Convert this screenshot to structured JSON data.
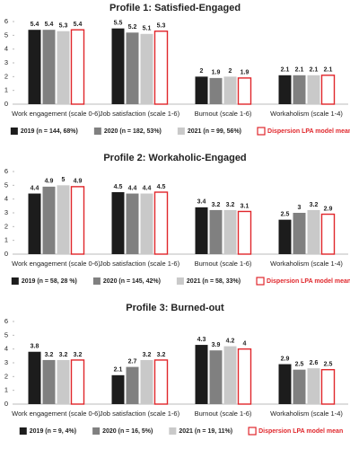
{
  "chart_data": [
    {
      "type": "bar",
      "title": "Profile 1: Satisfied-Engaged",
      "categories": [
        "Work engagement (scale 0-6)",
        "Job satisfaction (scale 1-6)",
        "Burnout (scale 1-6)",
        "Workaholism (scale 1-4)"
      ],
      "series": [
        {
          "name": "2019 (n = 144, 68%)",
          "color": "#1c1c1c",
          "values": [
            5.4,
            5.5,
            2,
            2.1
          ]
        },
        {
          "name": "2020 (n = 182, 53%)",
          "color": "#808080",
          "values": [
            5.4,
            5.2,
            1.9,
            2.1
          ]
        },
        {
          "name": "2021 (n = 99, 56%)",
          "color": "#c9c9c9",
          "values": [
            5.3,
            5.1,
            2,
            2.1
          ]
        },
        {
          "name": "Dispersion LPA model mean",
          "color": "#e0262b",
          "outline": true,
          "values": [
            5.4,
            5.3,
            1.9,
            2.1
          ]
        }
      ],
      "ylim": [
        0,
        6
      ],
      "yticks": [
        0,
        1,
        2,
        3,
        4,
        5,
        6
      ]
    },
    {
      "type": "bar",
      "title": "Profile 2: Workaholic-Engaged",
      "categories": [
        "Work engagement (scale 0-6)",
        "Job satisfaction (scale 1-6)",
        "Burnout (scale 1-6)",
        "Workaholism (scale 1-4)"
      ],
      "series": [
        {
          "name": "2019 (n = 58, 28 %)",
          "color": "#1c1c1c",
          "values": [
            4.4,
            4.5,
            3.4,
            2.5
          ]
        },
        {
          "name": "2020 (n = 145, 42%)",
          "color": "#808080",
          "values": [
            4.9,
            4.4,
            3.2,
            3
          ]
        },
        {
          "name": "2021 (n = 58, 33%)",
          "color": "#c9c9c9",
          "values": [
            5,
            4.4,
            3.2,
            3.2
          ]
        },
        {
          "name": "Dispersion LPA model mean",
          "color": "#e0262b",
          "outline": true,
          "values": [
            4.9,
            4.5,
            3.1,
            2.9
          ]
        }
      ],
      "ylim": [
        0,
        6
      ],
      "yticks": [
        0,
        1,
        2,
        3,
        4,
        5,
        6
      ]
    },
    {
      "type": "bar",
      "title": "Profile 3: Burned-out",
      "categories": [
        "Work engagement (scale 0-6)",
        "Job satisfaction (scale 1-6)",
        "Burnout (scale 1-6)",
        "Workaholism (scale 1-4)"
      ],
      "series": [
        {
          "name": "2019 (n = 9, 4%)",
          "color": "#1c1c1c",
          "values": [
            3.8,
            2.1,
            4.3,
            2.9
          ]
        },
        {
          "name": "2020 (n = 16, 5%)",
          "color": "#808080",
          "values": [
            3.2,
            2.7,
            3.9,
            2.5
          ]
        },
        {
          "name": "2021 (n = 19, 11%)",
          "color": "#c9c9c9",
          "values": [
            3.2,
            3.2,
            4.2,
            2.6
          ]
        },
        {
          "name": "Dispersion LPA model mean",
          "color": "#e0262b",
          "outline": true,
          "values": [
            3.2,
            3.2,
            4,
            2.5
          ]
        }
      ],
      "ylim": [
        0,
        6
      ],
      "yticks": [
        0,
        1,
        2,
        3,
        4,
        5,
        6
      ]
    }
  ]
}
